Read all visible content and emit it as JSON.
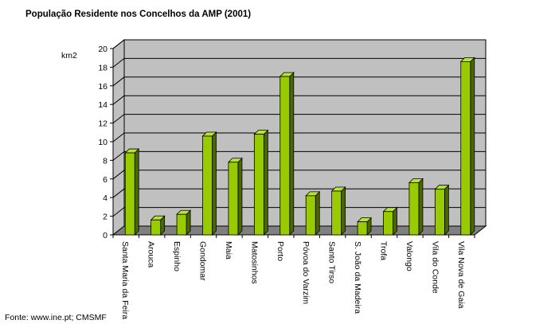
{
  "header": {
    "title": "População Residente nos Concelhos da AMP (2001)"
  },
  "footer": {
    "source": "Fonte: www.ine.pt; CMSMF"
  },
  "colors": {
    "bar_front": "#99cc00",
    "bar_side": "#4c6600",
    "bar_top": "#b8e23a",
    "wall": "#c0c0c0",
    "floor": "#808080"
  },
  "chart_data": {
    "type": "bar",
    "title": "População Residente nos Concelhos da AMP (2001)",
    "ylabel": "km2",
    "xlabel": "",
    "ylim": [
      0,
      20
    ],
    "yticks": [
      0,
      2,
      4,
      6,
      8,
      10,
      12,
      14,
      16,
      18,
      20
    ],
    "grid": true,
    "categories": [
      "Santa Maria da Feira",
      "Arouca",
      "Espinho",
      "Gondomar",
      "Maia",
      "Matosinhos",
      "Porto",
      "Póvoa do Varzim",
      "Santo Tirso",
      "S. João da Madeira",
      "Trofa",
      "Valongo",
      "Vila do Conde",
      "Vila Nova de Gaia"
    ],
    "values": [
      8.8,
      1.6,
      2.2,
      10.6,
      7.8,
      10.8,
      17.0,
      4.2,
      4.7,
      1.4,
      2.5,
      5.6,
      4.9,
      18.6
    ]
  }
}
